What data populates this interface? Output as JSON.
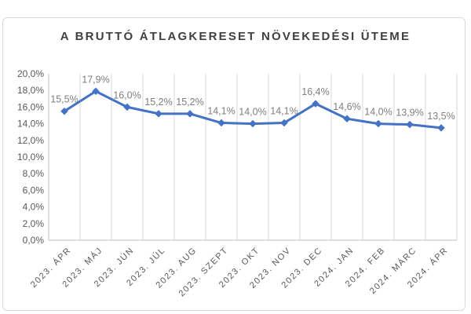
{
  "chart_data": {
    "type": "line",
    "title": "A BRUTTÓ ÁTLAGKERESET NÖVEKEDÉSI ÜTEME",
    "xlabel": "",
    "ylabel": "",
    "categories": [
      "2023. ÁPR",
      "2023. MÁJ",
      "2023. JÚN",
      "2023. JÚL",
      "2023. AUG",
      "2023. SZEPT",
      "2023. OKT",
      "2023. NOV",
      "2023. DEC",
      "2024. JAN",
      "2024. FEB",
      "2024. MÁRC",
      "2024. ÁPR"
    ],
    "series": [
      {
        "values": [
          15.5,
          17.9,
          16.0,
          15.2,
          15.2,
          14.1,
          14.0,
          14.1,
          16.4,
          14.6,
          14.0,
          13.9,
          13.5
        ],
        "data_labels": [
          "15,5%",
          "17,9%",
          "16,0%",
          "15,2%",
          "15,2%",
          "14,1%",
          "14,0%",
          "14,1%",
          "16,4%",
          "14,6%",
          "14,0%",
          "13,9%",
          "13,5%"
        ],
        "color": "#4472c4"
      }
    ],
    "ylim": [
      0,
      20
    ],
    "yticks": [
      0,
      2,
      4,
      6,
      8,
      10,
      12,
      14,
      16,
      18,
      20
    ],
    "ytick_labels": [
      "0,0%",
      "2,0%",
      "4,0%",
      "6,0%",
      "8,0%",
      "10,0%",
      "12,0%",
      "14,0%",
      "16,0%",
      "18,0%",
      "20,0%"
    ],
    "grid": {
      "vertical": true,
      "horizontal": false
    },
    "legend": "none"
  }
}
